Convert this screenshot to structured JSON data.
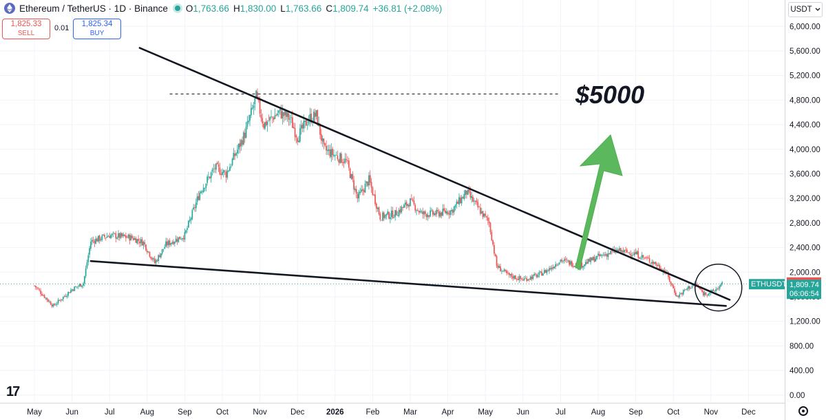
{
  "header": {
    "symbol_title": "Ethereum / TetherUS · 1D · Binance",
    "open_label": "O",
    "open": "1,763.66",
    "high_label": "H",
    "high": "1,830.00",
    "low_label": "L",
    "low": "1,763.66",
    "close_label": "C",
    "close": "1,809.74",
    "change": "+36.81 (+2.08%)"
  },
  "trade": {
    "sell_price": "1,825.33",
    "sell_label": "SELL",
    "spread": "0.01",
    "buy_price": "1,825.34",
    "buy_label": "BUY"
  },
  "currency_selector": "USDT",
  "annotation": "$5000",
  "price_labels": {
    "ticker": "ETHUSDT",
    "ask": "1,825.33",
    "last": "1,809.74",
    "countdown": "06:06:54"
  },
  "colors": {
    "up": "#26a69a",
    "down": "#ef5350",
    "arrow": "#5cb85c",
    "trendline": "#131722"
  },
  "icons": [
    "ethereum-icon",
    "market-open-dot-icon",
    "chevron-down-icon",
    "tradingview-logo",
    "settings-icon"
  ],
  "chart_data": {
    "type": "candlestick",
    "title": "Ethereum / TetherUS · 1D · Binance",
    "y_ticks": [
      "6,000.00",
      "5,600.00",
      "5,200.00",
      "4,800.00",
      "4,400.00",
      "4,000.00",
      "3,600.00",
      "3,200.00",
      "2,800.00",
      "2,400.00",
      "2,000.00",
      "1,600.00",
      "1,200.00",
      "800.00",
      "400.00",
      "0.00"
    ],
    "y_tick_values": [
      6000,
      5600,
      5200,
      4800,
      4400,
      4000,
      3600,
      3200,
      2800,
      2400,
      2000,
      1600,
      1200,
      800,
      400,
      0
    ],
    "x_ticks": [
      "May",
      "Jun",
      "Jul",
      "Aug",
      "Sep",
      "Oct",
      "Nov",
      "Dec",
      "2026",
      "Feb",
      "Mar",
      "Apr",
      "May",
      "Jun",
      "Jul",
      "Aug",
      "Sep",
      "Oct",
      "Nov",
      "Dec"
    ],
    "ylim": [
      -70,
      6160
    ],
    "price_path_monthly": [
      {
        "x": 0,
        "y": 1780
      },
      {
        "x": 0.5,
        "y": 1450
      },
      {
        "x": 1,
        "y": 1720
      },
      {
        "x": 1.3,
        "y": 1820
      },
      {
        "x": 1.5,
        "y": 2500
      },
      {
        "x": 2,
        "y": 2600
      },
      {
        "x": 2.6,
        "y": 2560
      },
      {
        "x": 2.9,
        "y": 2480
      },
      {
        "x": 3.2,
        "y": 2150
      },
      {
        "x": 3.5,
        "y": 2450
      },
      {
        "x": 4,
        "y": 2600
      },
      {
        "x": 4.4,
        "y": 3300
      },
      {
        "x": 4.8,
        "y": 3700
      },
      {
        "x": 5.1,
        "y": 3600
      },
      {
        "x": 5.6,
        "y": 4250
      },
      {
        "x": 5.9,
        "y": 4850
      },
      {
        "x": 6.1,
        "y": 4400
      },
      {
        "x": 6.5,
        "y": 4600
      },
      {
        "x": 6.8,
        "y": 4500
      },
      {
        "x": 7,
        "y": 4200
      },
      {
        "x": 7.3,
        "y": 4500
      },
      {
        "x": 7.5,
        "y": 4550
      },
      {
        "x": 7.7,
        "y": 4000
      },
      {
        "x": 8,
        "y": 3900
      },
      {
        "x": 8.3,
        "y": 3800
      },
      {
        "x": 8.6,
        "y": 3200
      },
      {
        "x": 8.9,
        "y": 3500
      },
      {
        "x": 9.2,
        "y": 2900
      },
      {
        "x": 9.6,
        "y": 2950
      },
      {
        "x": 10,
        "y": 3150
      },
      {
        "x": 10.3,
        "y": 2950
      },
      {
        "x": 10.7,
        "y": 2950
      },
      {
        "x": 11.1,
        "y": 3000
      },
      {
        "x": 11.5,
        "y": 3300
      },
      {
        "x": 11.8,
        "y": 3050
      },
      {
        "x": 12.1,
        "y": 2800
      },
      {
        "x": 12.3,
        "y": 2100
      },
      {
        "x": 12.6,
        "y": 1950
      },
      {
        "x": 13,
        "y": 1880
      },
      {
        "x": 13.4,
        "y": 1950
      },
      {
        "x": 13.7,
        "y": 2050
      },
      {
        "x": 14,
        "y": 2200
      },
      {
        "x": 14.5,
        "y": 2100
      },
      {
        "x": 15,
        "y": 2250
      },
      {
        "x": 15.5,
        "y": 2350
      },
      {
        "x": 16,
        "y": 2300
      },
      {
        "x": 16.5,
        "y": 2150
      },
      {
        "x": 16.8,
        "y": 2000
      },
      {
        "x": 17.1,
        "y": 1600
      },
      {
        "x": 17.4,
        "y": 1750
      },
      {
        "x": 17.6,
        "y": 1800
      },
      {
        "x": 17.8,
        "y": 1650
      },
      {
        "x": 18.05,
        "y": 1680
      },
      {
        "x": 18.3,
        "y": 1800
      }
    ],
    "last_price": 1809.74,
    "ask_price": 1825.33,
    "target_level": 4900,
    "trendlines": [
      {
        "name": "upper",
        "from": {
          "x": 2.8,
          "y": 5650
        },
        "to": {
          "x": 18.5,
          "y": 1550
        }
      },
      {
        "name": "lower",
        "from": {
          "x": 1.5,
          "y": 2180
        },
        "to": {
          "x": 18.4,
          "y": 1450
        }
      }
    ],
    "grid": true,
    "legend": "none"
  }
}
